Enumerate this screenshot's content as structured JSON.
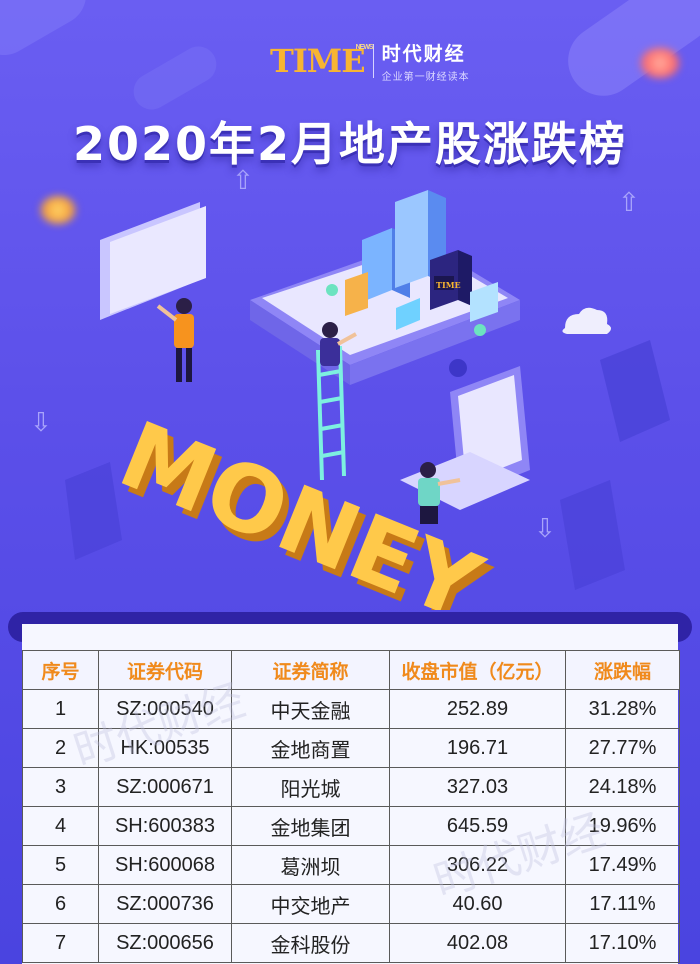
{
  "logo": {
    "mark": "TIME",
    "news": "NEWS",
    "name": "时代财经",
    "slogan": "企业第一财经读本"
  },
  "title": "2020年2月地产股涨跌榜",
  "illustration": {
    "word": "MONEY",
    "badge": "TIME"
  },
  "table": {
    "headers": [
      "序号",
      "证券代码",
      "证券简称",
      "收盘市值（亿元）",
      "涨跌幅"
    ],
    "rows": [
      {
        "rank": "1",
        "code": "SZ:000540",
        "name": "中天金融",
        "cap": "252.89",
        "change": "31.28%"
      },
      {
        "rank": "2",
        "code": "HK:00535",
        "name": "金地商置",
        "cap": "196.71",
        "change": "27.77%"
      },
      {
        "rank": "3",
        "code": "SZ:000671",
        "name": "阳光城",
        "cap": "327.03",
        "change": "24.18%"
      },
      {
        "rank": "4",
        "code": "SH:600383",
        "name": "金地集团",
        "cap": "645.59",
        "change": "19.96%"
      },
      {
        "rank": "5",
        "code": "SH:600068",
        "name": "葛洲坝",
        "cap": "306.22",
        "change": "17.49%"
      },
      {
        "rank": "6",
        "code": "SZ:000736",
        "name": "中交地产",
        "cap": "40.60",
        "change": "17.11%"
      },
      {
        "rank": "7",
        "code": "SZ:000656",
        "name": "金科股份",
        "cap": "402.08",
        "change": "17.10%"
      }
    ]
  },
  "watermark": "时代财经",
  "colors": {
    "background": "#5b4fe9",
    "title": "#ffffff",
    "header_text": "#f08a1c",
    "logo_gold": "#f7b532"
  }
}
